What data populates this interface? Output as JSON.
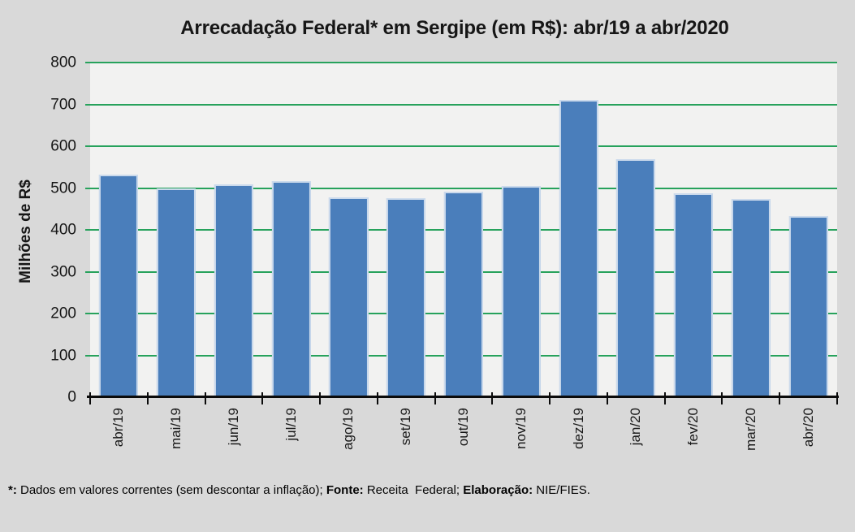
{
  "title": "Arrecadação Federal* em Sergipe (em R$): abr/19 a abr/2020",
  "chart_data": {
    "type": "bar",
    "title": "Arrecadação Federal* em Sergipe (em R$): abr/19 a abr/2020",
    "categories": [
      "abr/19",
      "mai/19",
      "jun/19",
      "jul/19",
      "ago/19",
      "set/19",
      "out/19",
      "nov/19",
      "dez/19",
      "jan/20",
      "fev/20",
      "mar/20",
      "abr/20"
    ],
    "values": [
      533,
      500,
      509,
      517,
      478,
      476,
      491,
      504,
      711,
      569,
      487,
      474,
      434
    ],
    "xlabel": "",
    "ylabel": "Milhões de R$",
    "ylim": [
      0,
      800
    ],
    "yticks": [
      0,
      100,
      200,
      300,
      400,
      500,
      600,
      700,
      800
    ],
    "grid": "horizontal-green-lines",
    "legend": "none",
    "colors": {
      "bar": "#4A7EBB",
      "bar_border": "#CBDAEC",
      "gridline": "#27A25C",
      "plot_bg": "#F2F2F1",
      "page_bg": "#D9D9D9"
    }
  },
  "footer": {
    "segments": [
      {
        "text": "*:",
        "bold": true
      },
      {
        "text": " Dados em valores correntes (sem descontar a inflação); ",
        "bold": false
      },
      {
        "text": "Fonte:",
        "bold": true
      },
      {
        "text": " Receita  Federal; ",
        "bold": false
      },
      {
        "text": "Elaboração:",
        "bold": true
      },
      {
        "text": " NIE/FIES.",
        "bold": false
      }
    ]
  }
}
